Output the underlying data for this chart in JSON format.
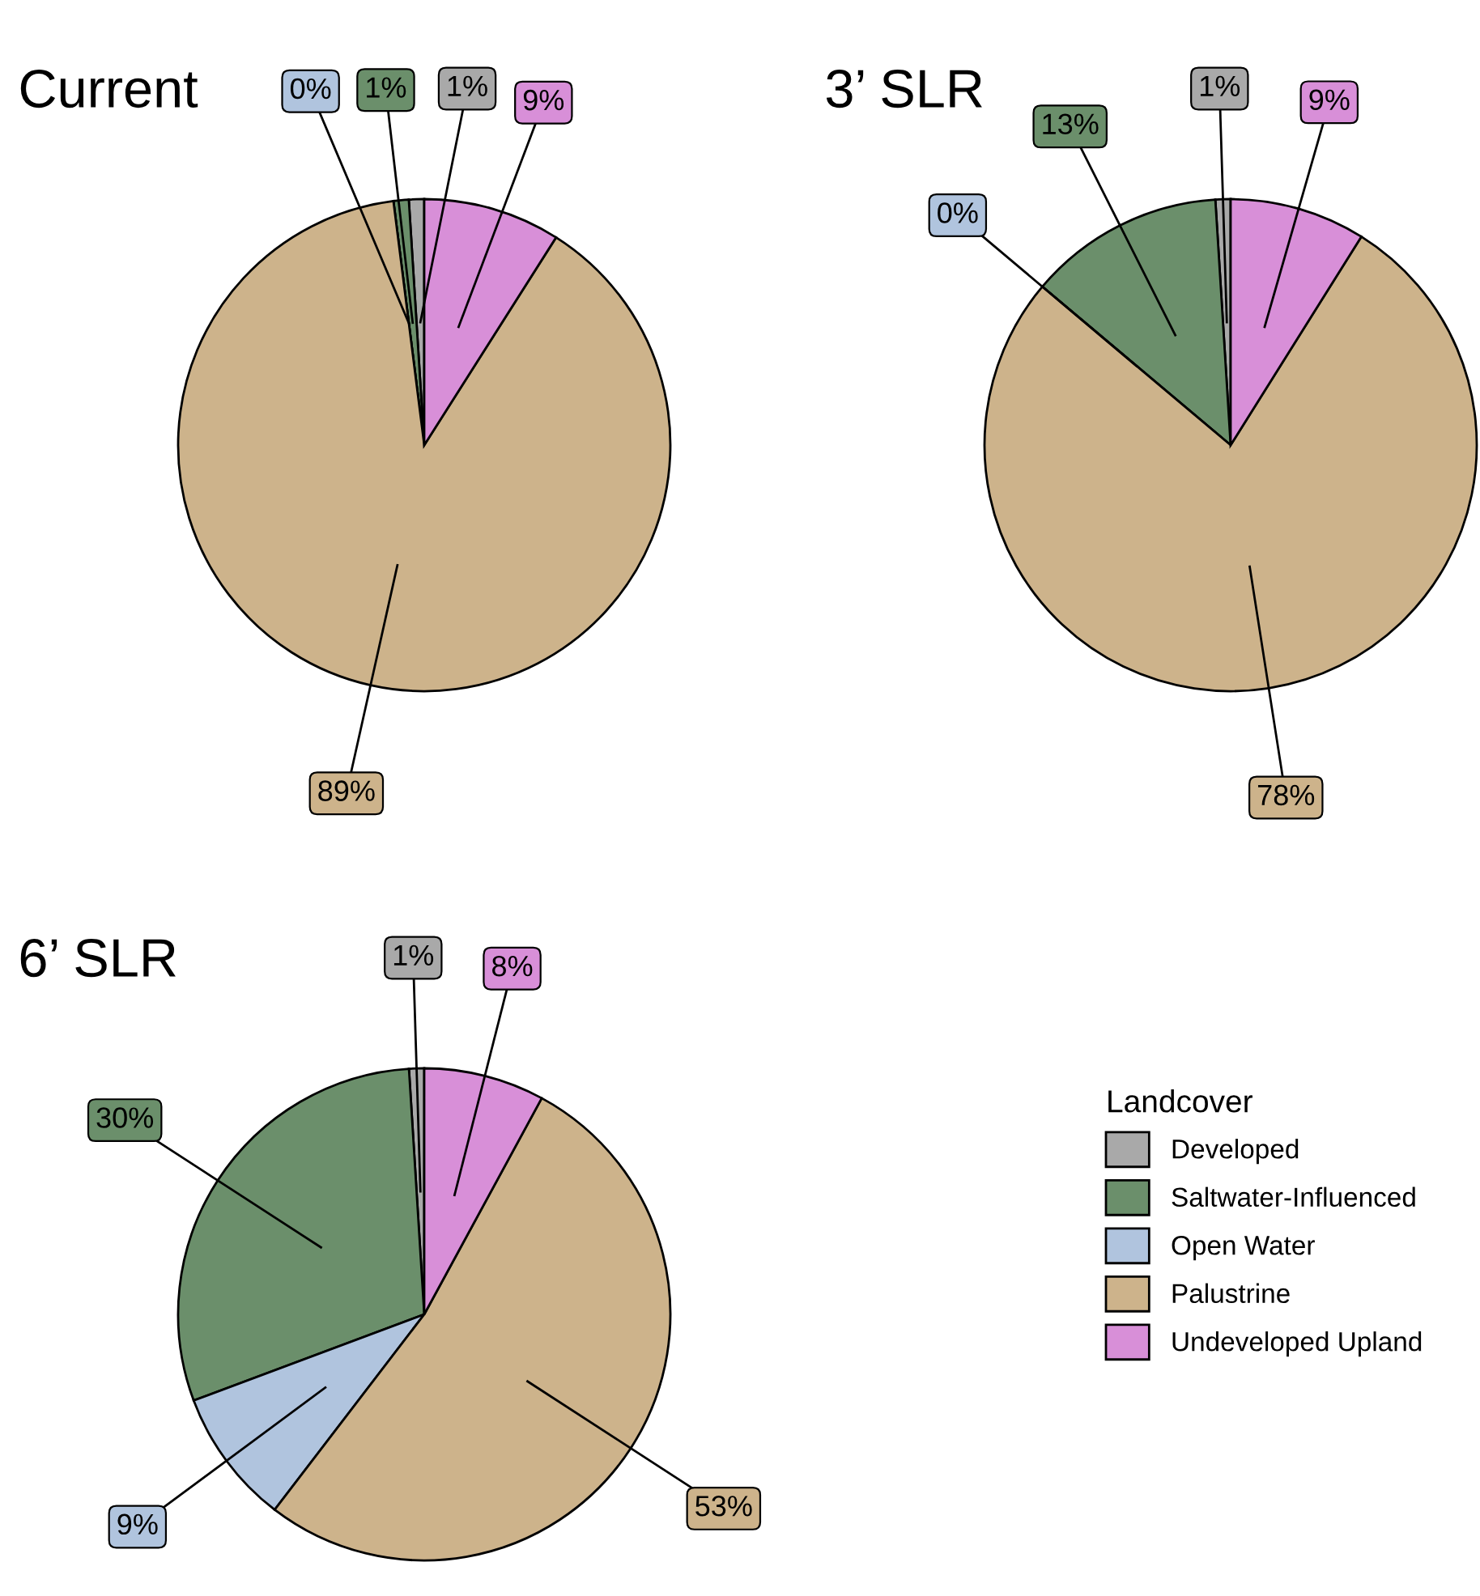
{
  "chart_data": [
    {
      "type": "pie",
      "title": "Current",
      "categories": [
        "Developed",
        "Saltwater-Influenced",
        "Open Water",
        "Palustrine",
        "Undeveloped Upland"
      ],
      "values": [
        1,
        1,
        0,
        89,
        9
      ],
      "colors": [
        "#a9a9a9",
        "#6b8f6b",
        "#b0c4de",
        "#cdb38b",
        "#d88fd8"
      ],
      "value_labels": [
        "1%",
        "1%",
        "0%",
        "89%",
        "9%"
      ],
      "legend": "bottom right",
      "legend_title": "Landcover"
    },
    {
      "type": "pie",
      "title": "3’ SLR",
      "categories": [
        null,
        null,
        null,
        null,
        null
      ],
      "values": [
        1,
        13,
        0,
        78,
        9
      ],
      "colors": [
        "#a9a9a9",
        "#6b8f6b",
        "#b0c4de",
        "#cdb38b",
        "#d88fd8"
      ],
      "value_labels": [
        "1%",
        "13%",
        "0%",
        "78%",
        "9%"
      ]
    },
    {
      "type": "pie",
      "title": "6’ SLR",
      "categories": [
        null,
        null,
        null,
        null,
        null
      ],
      "values": [
        1,
        30,
        9,
        53,
        8
      ],
      "colors": [
        "#a9a9a9",
        "#6b8f6b",
        "#b0c4de",
        "#cdb38b",
        "#d88fd8"
      ],
      "value_labels": [
        "1%",
        "30%",
        "9%",
        "53%",
        "8%"
      ]
    }
  ]
}
